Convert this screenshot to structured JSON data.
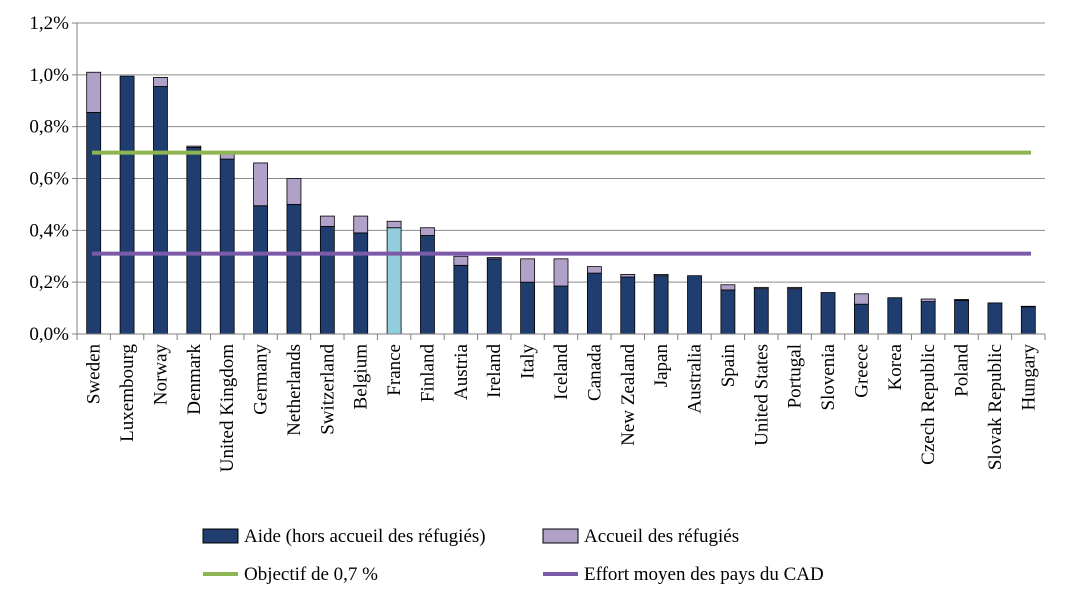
{
  "chart_data": {
    "type": "bar",
    "stacked": true,
    "categories": [
      "Sweden",
      "Luxembourg",
      "Norway",
      "Denmark",
      "United Kingdom",
      "Germany",
      "Netherlands",
      "Switzerland",
      "Belgium",
      "France",
      "Finland",
      "Austria",
      "Ireland",
      "Italy",
      "Iceland",
      "Canada",
      "New Zealand",
      "Japan",
      "Australia",
      "Spain",
      "United States",
      "Portugal",
      "Slovenia",
      "Greece",
      "Korea",
      "Czech Republic",
      "Poland",
      "Slovak Republic",
      "Hungary"
    ],
    "series": [
      {
        "name": "Aide (hors accueil des réfugiés)",
        "color": "#1f3d6e",
        "values": [
          0.855,
          0.995,
          0.955,
          0.72,
          0.675,
          0.495,
          0.5,
          0.415,
          0.39,
          0.41,
          0.38,
          0.265,
          0.29,
          0.2,
          0.185,
          0.235,
          0.22,
          0.225,
          0.225,
          0.17,
          0.175,
          0.175,
          0.16,
          0.115,
          0.14,
          0.125,
          0.13,
          0.12,
          0.105
        ]
      },
      {
        "name": "Accueil des réfugiés",
        "color": "#b1a0c7",
        "values": [
          0.155,
          0.0,
          0.035,
          0.005,
          0.025,
          0.165,
          0.1,
          0.04,
          0.065,
          0.025,
          0.03,
          0.035,
          0.005,
          0.09,
          0.105,
          0.025,
          0.01,
          0.005,
          0.0,
          0.02,
          0.005,
          0.005,
          0.0,
          0.04,
          0.0,
          0.01,
          0.003,
          0.0,
          0.002
        ]
      }
    ],
    "highlight": {
      "category": "France",
      "color": "#92cddc"
    },
    "lines": [
      {
        "name": "Objectif de 0,7 %",
        "value": 0.7,
        "color": "#8db551"
      },
      {
        "name": "Effort moyen des pays du CAD",
        "value": 0.31,
        "color": "#7b5ba8"
      }
    ],
    "ylim": [
      0,
      1.2
    ],
    "yticks": [
      "0,0%",
      "0,2%",
      "0,4%",
      "0,6%",
      "0,8%",
      "1,0%",
      "1,2%"
    ],
    "grid": true,
    "legend_position": "bottom"
  }
}
